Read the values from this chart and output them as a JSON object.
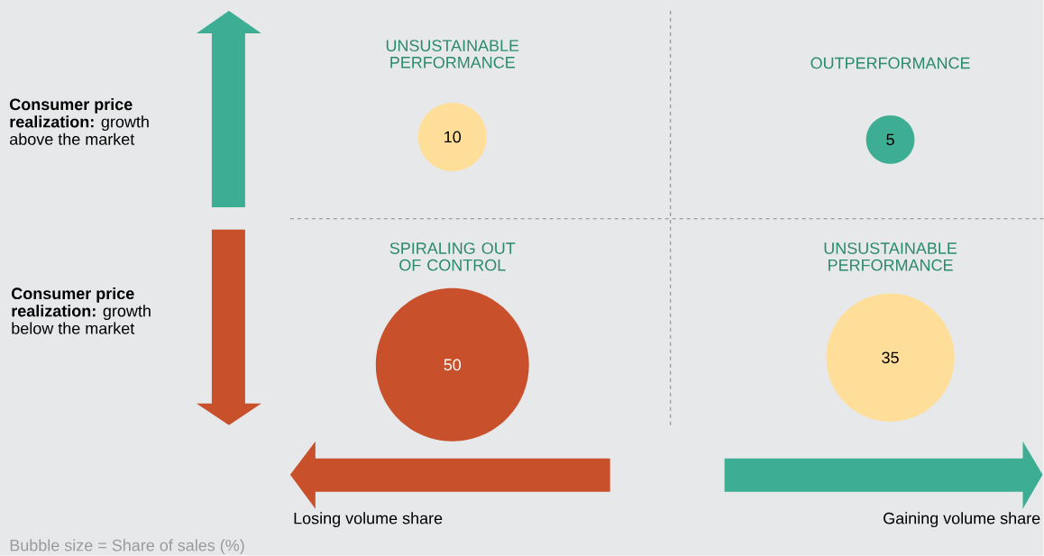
{
  "chart_data": {
    "type": "other",
    "categories": [
      "UNSUSTAINABLE PERFORMANCE",
      "OUTPERFORMANCE",
      "SPIRALING OUT OF CONTROL",
      "UNSUSTAINABLE PERFORMANCE"
    ],
    "values": [
      10,
      5,
      50,
      35
    ],
    "colors": [
      "#fede98",
      "#3dae93",
      "#c8502b",
      "#fede98"
    ],
    "data_labels": true,
    "annotations": [
      "**Consumer price realization:** growth above the market",
      "**Consumer price realization:** growth below the market",
      "Losing volume share",
      "Gaining volume share",
      "Bubble size = Share of sales (%)"
    ]
  }
}
